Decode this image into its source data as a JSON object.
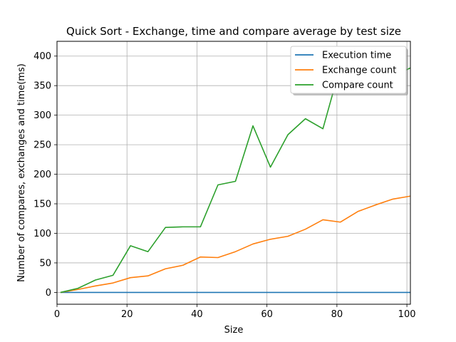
{
  "chart_data": {
    "type": "line",
    "title": "Quick Sort - Exchange, time and compare average by test size",
    "xlabel": "Size",
    "ylabel": "Number of compares, exchanges and time(ms)",
    "xlim": [
      0,
      101
    ],
    "ylim": [
      -20,
      425
    ],
    "xticks": [
      0,
      20,
      40,
      60,
      80,
      100
    ],
    "yticks": [
      0,
      50,
      100,
      150,
      200,
      250,
      300,
      350,
      400
    ],
    "grid": true,
    "legend_position": "top-right",
    "x": [
      1,
      6,
      11,
      16,
      21,
      26,
      31,
      36,
      41,
      46,
      51,
      56,
      61,
      66,
      71,
      76,
      81,
      86,
      91,
      96,
      101
    ],
    "series": [
      {
        "name": "Execution time",
        "color": "#1f77b4",
        "values": [
          0,
          0,
          0,
          0,
          0,
          0,
          0,
          0,
          0,
          0,
          0,
          0,
          0,
          0,
          0,
          0,
          0,
          0,
          0,
          0,
          0
        ]
      },
      {
        "name": "Exchange count",
        "color": "#ff7f0e",
        "values": [
          0,
          5,
          11,
          16,
          25,
          28,
          40,
          46,
          60,
          59,
          69,
          82,
          90,
          95,
          107,
          123,
          119,
          137,
          148,
          158,
          163
        ]
      },
      {
        "name": "Compare count",
        "color": "#2ca02c",
        "values": [
          0,
          7,
          21,
          29,
          79,
          69,
          110,
          111,
          111,
          182,
          188,
          282,
          212,
          267,
          294,
          277,
          383,
          345,
          358,
          366,
          380
        ]
      }
    ]
  }
}
